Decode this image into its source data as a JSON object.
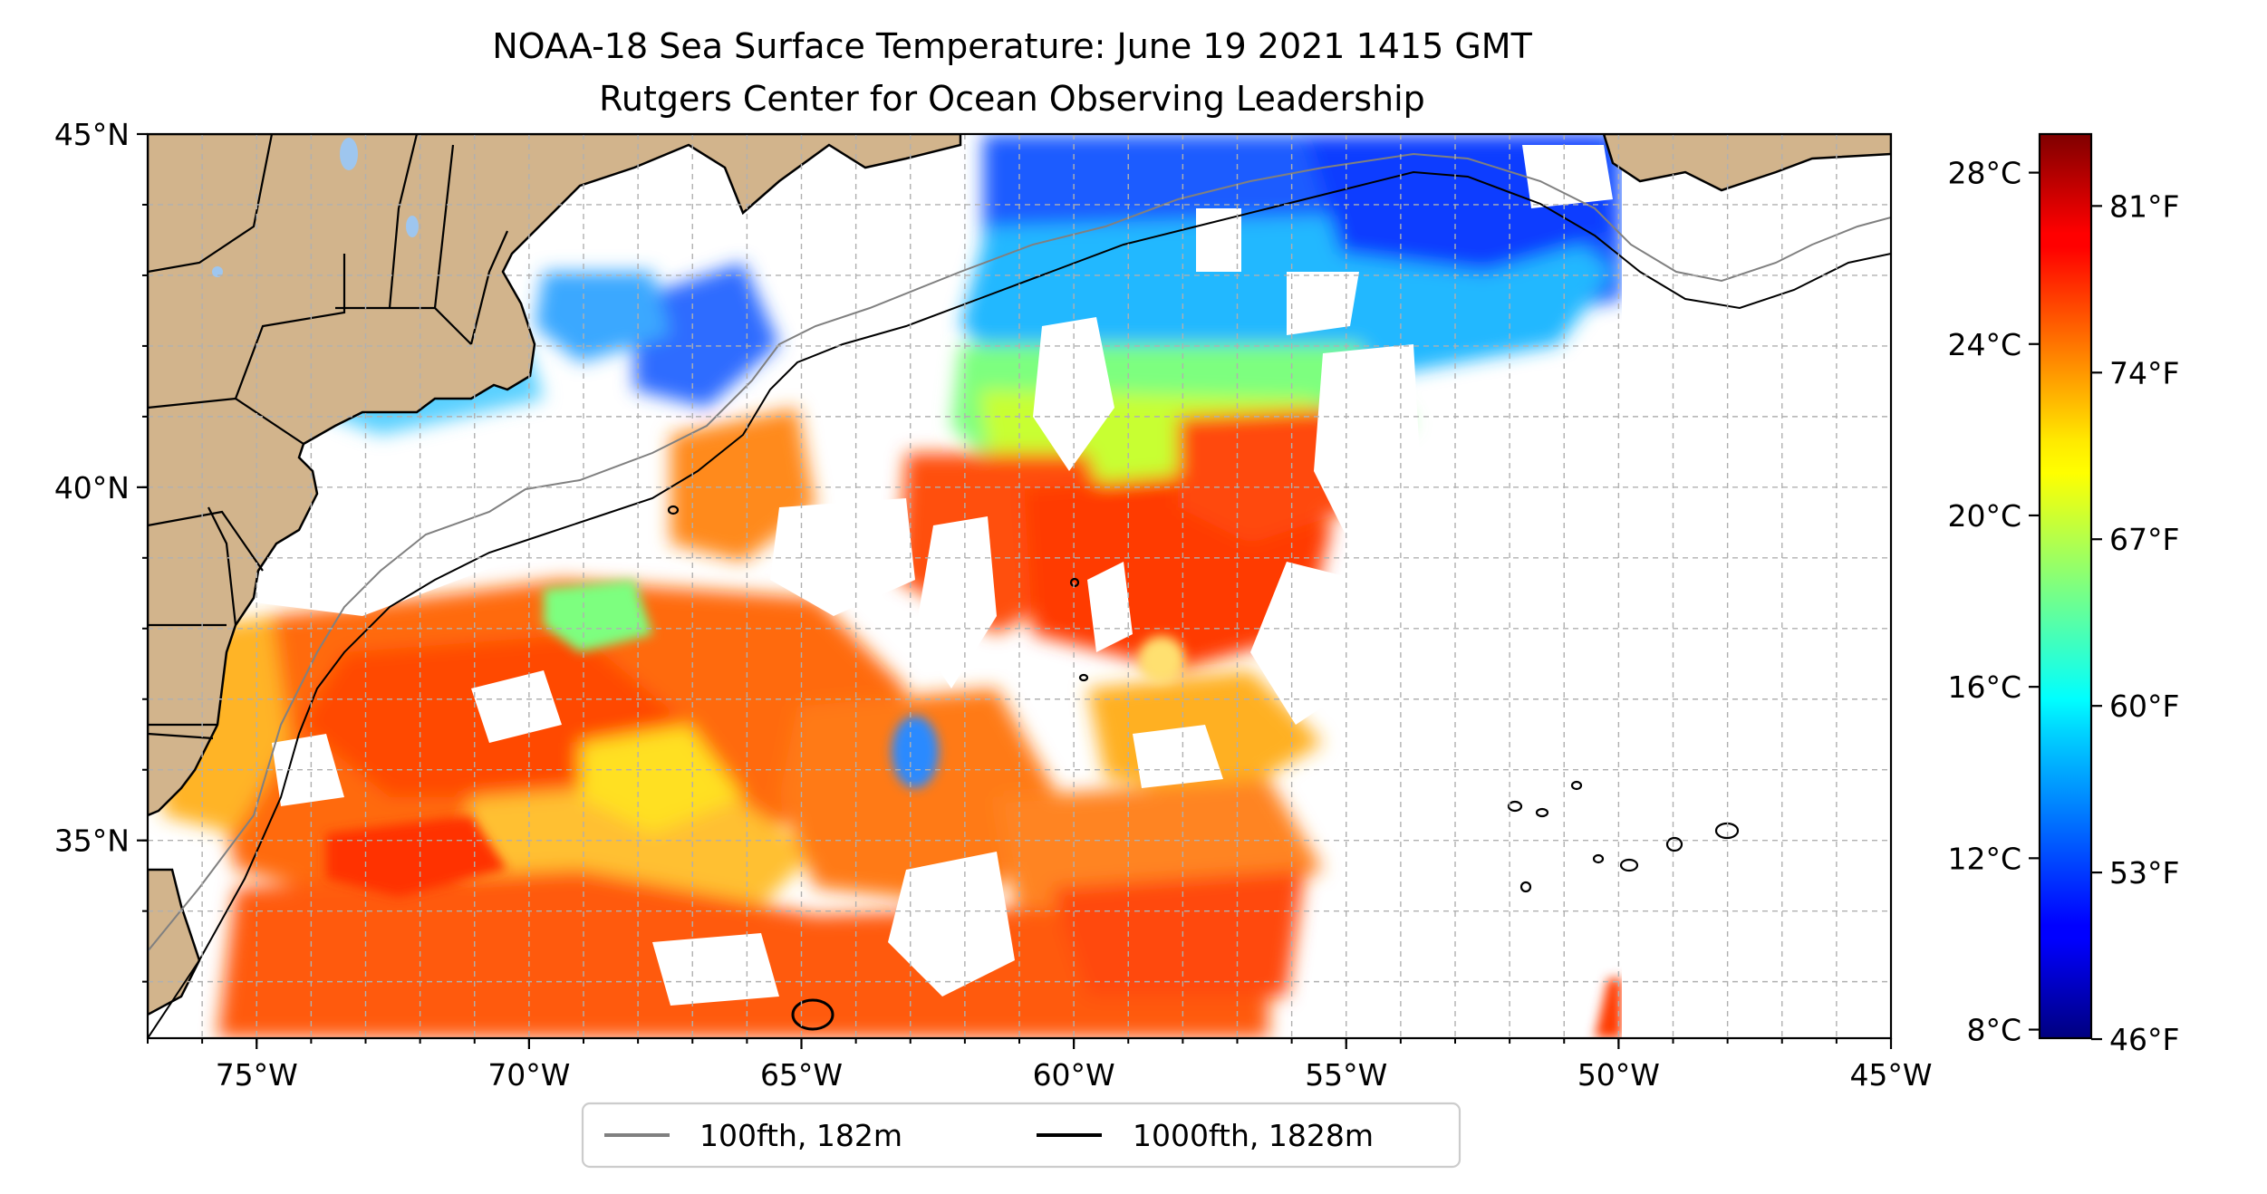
{
  "title": "NOAA-18 Sea Surface Temperature: June 19 2021 1415 GMT",
  "subtitle": "Rutgers Center for Ocean Observing Leadership",
  "map": {
    "lon_range": [
      -77,
      -45
    ],
    "lat_range": [
      32.2,
      45
    ],
    "lon_ticks": [
      {
        "value": -75,
        "label": "75°W"
      },
      {
        "value": -70,
        "label": "70°W"
      },
      {
        "value": -65,
        "label": "65°W"
      },
      {
        "value": -60,
        "label": "60°W"
      },
      {
        "value": -55,
        "label": "55°W"
      },
      {
        "value": -50,
        "label": "50°W"
      },
      {
        "value": -45,
        "label": "45°W"
      }
    ],
    "lat_ticks": [
      {
        "value": 35,
        "label": "35°N"
      },
      {
        "value": 40,
        "label": "40°N"
      },
      {
        "value": 45,
        "label": "45°N"
      }
    ],
    "gridlines": true,
    "land_color": "#d2b48c"
  },
  "colorbar": {
    "colormap": "jet",
    "celsius_range": [
      7.8,
      28.9
    ],
    "celsius_ticks": [
      {
        "value": 8,
        "label": "8°C"
      },
      {
        "value": 12,
        "label": "12°C"
      },
      {
        "value": 16,
        "label": "16°C"
      },
      {
        "value": 20,
        "label": "20°C"
      },
      {
        "value": 24,
        "label": "24°C"
      },
      {
        "value": 28,
        "label": "28°C"
      }
    ],
    "fahrenheit_ticks": [
      {
        "value": 46,
        "label": "46°F"
      },
      {
        "value": 53,
        "label": "53°F"
      },
      {
        "value": 60,
        "label": "60°F"
      },
      {
        "value": 67,
        "label": "67°F"
      },
      {
        "value": 74,
        "label": "74°F"
      },
      {
        "value": 81,
        "label": "81°F"
      }
    ]
  },
  "legend": {
    "position": "bottom-center",
    "items": [
      {
        "label": "100fth, 182m",
        "color": "#808080"
      },
      {
        "label": "1000fth, 1828m",
        "color": "#000000"
      }
    ]
  }
}
